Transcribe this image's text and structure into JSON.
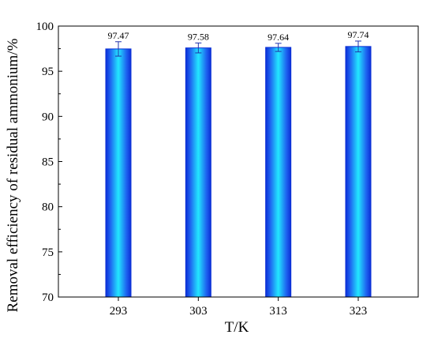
{
  "chart_data": {
    "type": "bar",
    "xlabel": "T/K",
    "ylabel": "Removal efficiency of residual ammonium/%",
    "categories": [
      "293",
      "303",
      "313",
      "323"
    ],
    "values": [
      97.47,
      97.58,
      97.64,
      97.74
    ],
    "errors": [
      0.8,
      0.55,
      0.45,
      0.6
    ],
    "data_labels": [
      "97.47",
      "97.58",
      "97.64",
      "97.74"
    ],
    "ylim": [
      70,
      100
    ],
    "yticks": [
      "70",
      "75",
      "80",
      "85",
      "90",
      "95",
      "100"
    ],
    "grid": false,
    "bar_color": "#1e7bff",
    "bar_highlight_color": "#22e6ff",
    "bar_edge_color": "#0b2fd6",
    "error_bar_color": "#2233aa"
  }
}
